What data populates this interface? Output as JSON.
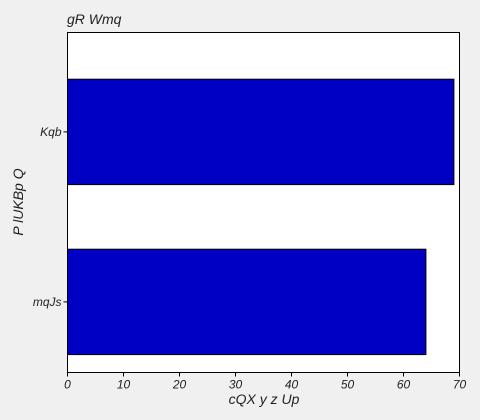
{
  "chart_data": {
    "type": "bar",
    "orientation": "horizontal",
    "title": "gR Wmq",
    "xlabel": "cQX y z Up",
    "ylabel": "P lUKBp Q",
    "categories": [
      "Kqb",
      "mqJs"
    ],
    "values": [
      69,
      64
    ],
    "xlim": [
      0,
      70
    ],
    "xticks": [
      "0",
      "10",
      "20",
      "30",
      "40",
      "50",
      "60",
      "70"
    ],
    "grid": false,
    "bar_color": "#0000c4",
    "bar_edge_color": "#000000",
    "plot_background": "#ffffff",
    "figure_background": "#f0f0f0"
  }
}
